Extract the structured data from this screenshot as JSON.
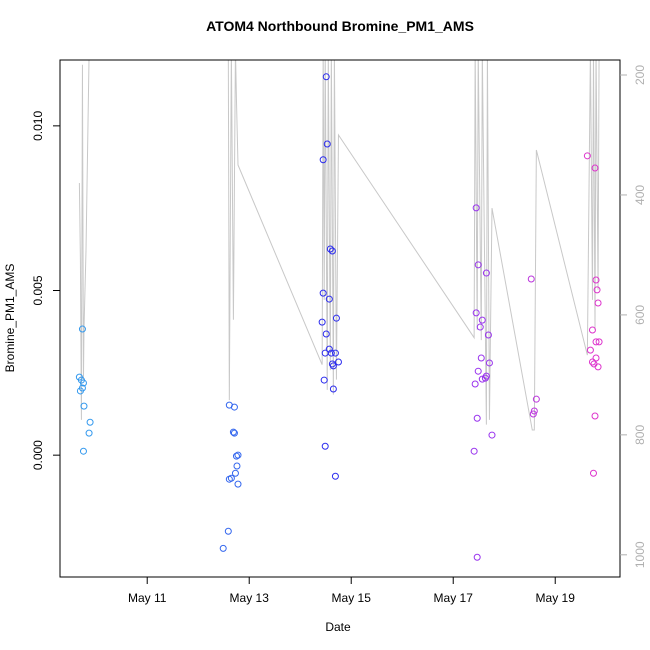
{
  "chart_data": {
    "type": "scatter",
    "title": "ATOM4 Northbound Bromine_PM1_AMS",
    "x_label": "Date",
    "y_label": "Bromine_PM1_AMS",
    "xlim": [
      9.29,
      20.27
    ],
    "ylim": [
      -0.0037,
      0.012
    ],
    "y2lim": [
      1037,
      175
    ],
    "xticks": [
      {
        "value": 11,
        "label": "May 11"
      },
      {
        "value": 13,
        "label": "May 13"
      },
      {
        "value": 15,
        "label": "May 15"
      },
      {
        "value": 17,
        "label": "May 17"
      },
      {
        "value": 19,
        "label": "May 19"
      }
    ],
    "yticks": [
      {
        "value": 0,
        "label": "0.000"
      },
      {
        "value": 0.005,
        "label": "0.005"
      },
      {
        "value": 0.01,
        "label": "0.010"
      }
    ],
    "y2ticks": [
      200,
      400,
      600,
      800,
      1000
    ],
    "y2tick_color": "#b0b0b0",
    "series": [
      {
        "color": "#3399ee",
        "x": [
          9.73,
          9.67,
          9.71,
          9.75,
          9.69,
          9.73,
          9.76,
          9.88,
          9.86,
          9.75
        ],
        "values": [
          0.00383,
          0.00237,
          0.00228,
          0.00219,
          0.00195,
          0.00204,
          0.00149,
          0.001,
          0.00067,
          0.00012
        ]
      },
      {
        "color": "#3366ee",
        "x": [
          12.61,
          12.71,
          12.69,
          12.71,
          12.78,
          12.75,
          12.76,
          12.73,
          12.65,
          12.61,
          12.78,
          12.59,
          12.49
        ],
        "values": [
          0.00152,
          0.00146,
          0.0007,
          0.00067,
          0,
          -3e-05,
          -0.00033,
          -0.00055,
          -0.0007,
          -0.00073,
          -0.00088,
          -0.00231,
          -0.00283
        ]
      },
      {
        "color": "#2b2bee",
        "x": [
          14.51,
          14.53,
          14.45,
          14.59,
          14.63,
          14.45,
          14.57,
          14.43,
          14.71,
          14.51,
          14.57,
          14.61,
          14.49,
          14.69,
          14.75,
          14.63,
          14.65,
          14.47,
          14.65,
          14.49,
          14.69
        ],
        "values": [
          0.01149,
          0.00945,
          0.00897,
          0.00626,
          0.0062,
          0.00492,
          0.00474,
          0.00404,
          0.00416,
          0.00368,
          0.00322,
          0.0031,
          0.0031,
          0.0031,
          0.00283,
          0.00277,
          0.00271,
          0.00228,
          0.00201,
          0.00027,
          -0.00064
        ]
      },
      {
        "color": "#9933ee",
        "x": [
          17.45,
          17.49,
          17.65,
          17.45,
          17.57,
          17.53,
          17.69,
          17.55,
          17.49,
          17.71,
          17.63,
          17.57,
          17.65,
          17.43,
          17.47,
          17.76,
          17.41,
          17.47
        ],
        "values": [
          0.00751,
          0.00578,
          0.00553,
          0.00432,
          0.0041,
          0.00389,
          0.00365,
          0.00295,
          0.00255,
          0.0028,
          0.00234,
          0.00231,
          0.0024,
          0.00216,
          0.00112,
          0.00061,
          0.00012,
          -0.0031
        ]
      },
      {
        "color": "#bb33dd",
        "x": [
          18.53,
          18.63,
          18.59,
          18.57
        ],
        "values": [
          0.00535,
          0.0017,
          0.00134,
          0.00125
        ]
      },
      {
        "color": "#dd33cc",
        "x": [
          19.63,
          19.78,
          19.8,
          19.82,
          19.84,
          19.73,
          19.69,
          19.8,
          19.86,
          19.73,
          19.8,
          19.76,
          19.84,
          19.78,
          19.75
        ],
        "values": [
          0.00909,
          0.00872,
          0.00532,
          0.00502,
          0.00462,
          0.0038,
          0.00319,
          0.00344,
          0.00344,
          0.00283,
          0.00295,
          0.00277,
          0.00268,
          0.00119,
          -0.00055
        ]
      }
    ],
    "line": {
      "axis": "y2",
      "color": "#c8c8c8",
      "x": [
        9.67,
        9.69,
        9.71,
        9.73,
        9.75,
        9.76,
        9.8,
        9.86,
        12.59,
        12.61,
        12.65,
        12.69,
        12.73,
        12.75,
        12.78,
        14.43,
        14.45,
        14.47,
        14.49,
        14.53,
        14.55,
        14.59,
        14.61,
        14.65,
        14.67,
        14.71,
        14.75,
        17.41,
        17.43,
        17.47,
        17.49,
        17.55,
        17.57,
        17.65,
        17.67,
        17.71,
        17.76,
        18.55,
        18.59,
        18.63,
        19.63,
        19.69,
        19.73,
        19.75,
        19.78,
        19.8,
        19.84,
        19.86
      ],
      "values": [
        380,
        508,
        775,
        183,
        708,
        625,
        492,
        167,
        158,
        742,
        158,
        608,
        158,
        242,
        350,
        683,
        158,
        575,
        158,
        725,
        158,
        692,
        158,
        733,
        158,
        708,
        300,
        638,
        158,
        625,
        158,
        642,
        158,
        783,
        158,
        775,
        422,
        792,
        792,
        325,
        667,
        158,
        575,
        158,
        625,
        158,
        558,
        158
      ]
    }
  }
}
